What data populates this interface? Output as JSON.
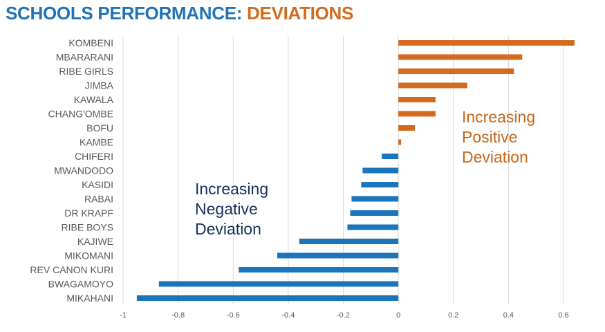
{
  "title": {
    "part1": "SCHOOLS PERFORMANCE: ",
    "part2": "DEVIATIONS"
  },
  "colors": {
    "title_blue": "#1f73b7",
    "title_orange": "#d46a1d",
    "positive": "#d46a1d",
    "negative": "#1b75bc",
    "grid": "#d9d9d9",
    "label": "#595959"
  },
  "annotations": {
    "positive": [
      "Increasing",
      "Positive",
      "Deviation"
    ],
    "negative": [
      "Increasing",
      "Negative",
      "Deviation"
    ]
  },
  "chart_data": {
    "type": "bar",
    "orientation": "horizontal",
    "categories": [
      "KOMBENI",
      "MBARARANI",
      "RIBE GIRLS",
      "JIMBA",
      "KAWALA",
      "CHANG'OMBE",
      "BOFU",
      "KAMBE",
      "CHIFERI",
      "MWANDODO",
      "KASIDI",
      "RABAI",
      "DR KRAPF",
      "RIBE BOYS",
      "KAJIWE",
      "MIKOMANI",
      "REV CANON KURI",
      "BWAGAMOYO",
      "MIKAHANI"
    ],
    "values": [
      0.64,
      0.45,
      0.42,
      0.25,
      0.135,
      0.135,
      0.06,
      0.01,
      -0.06,
      -0.13,
      -0.135,
      -0.17,
      -0.175,
      -0.185,
      -0.36,
      -0.44,
      -0.58,
      -0.87,
      -0.95
    ],
    "xlim": [
      -1,
      0.6
    ],
    "xticks": [
      -1,
      -0.8,
      -0.6,
      -0.4,
      -0.2,
      0,
      0.2,
      0.4,
      0.6
    ],
    "xtick_labels": [
      "-1",
      "-0.8",
      "-0.6",
      "-0.4",
      "-0.2",
      "0",
      "0.2",
      "0.4",
      "0.6"
    ],
    "grid": true,
    "xlabel": "",
    "ylabel": ""
  }
}
